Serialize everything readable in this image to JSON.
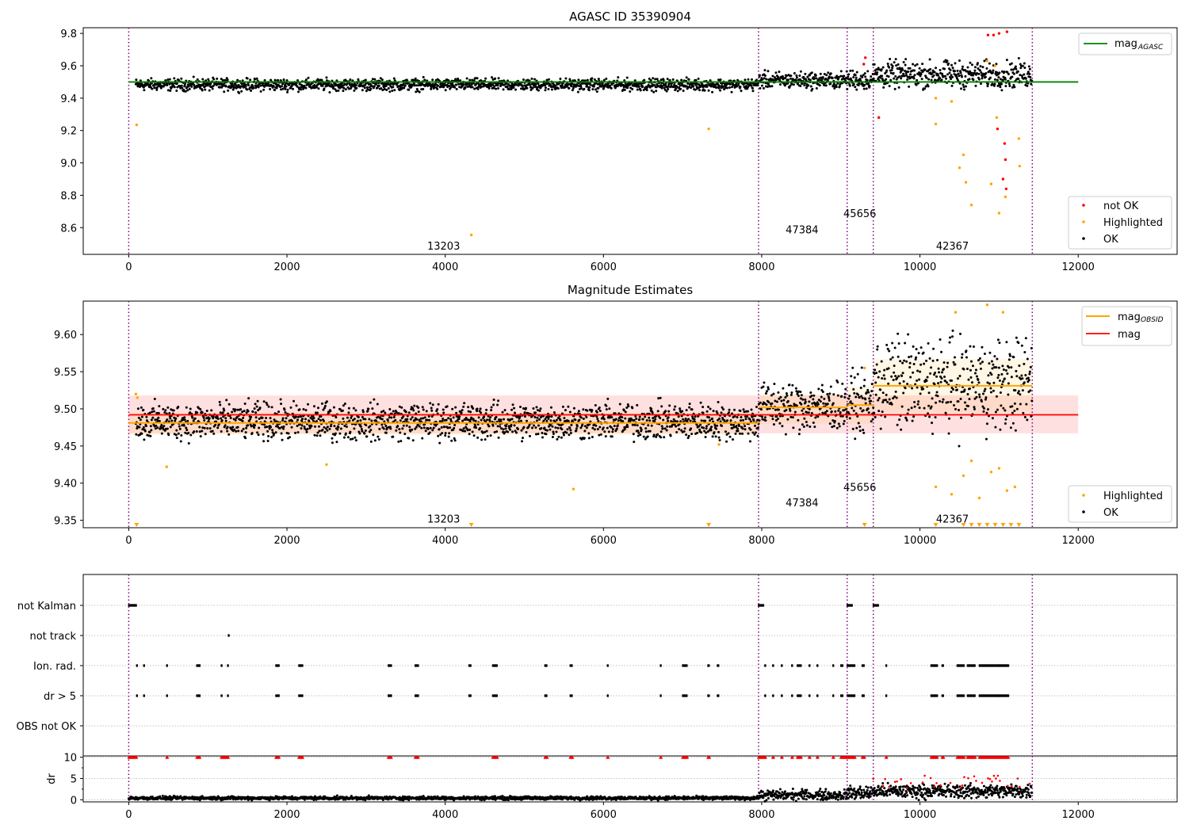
{
  "chart_data": [
    {
      "type": "scatter",
      "title": "AGASC ID 35390904",
      "xlim": [
        -575,
        13250
      ],
      "ylim": [
        8.435,
        9.835
      ],
      "xticks": [
        0,
        2000,
        4000,
        6000,
        8000,
        10000,
        12000
      ],
      "yticks": [
        8.6,
        8.8,
        9.0,
        9.2,
        9.4,
        9.6,
        9.8
      ],
      "obsid_boundaries": [
        0,
        7960,
        9080,
        9410,
        11420
      ],
      "obsid_labels": [
        {
          "text": "13203",
          "x": 3980,
          "y": 8.49
        },
        {
          "text": "47384",
          "x": 8510,
          "y": 8.59
        },
        {
          "text": "45656",
          "x": 9240,
          "y": 8.69
        },
        {
          "text": "42367",
          "x": 10410,
          "y": 8.49
        }
      ],
      "reference_line": {
        "name": "mag_AGASC",
        "value": 9.5,
        "x": [
          0,
          12000
        ],
        "color": "#008000"
      },
      "series": [
        {
          "name": "not OK",
          "color": "#ff0000"
        },
        {
          "name": "Highlighted",
          "color": "#ffa500"
        },
        {
          "name": "OK",
          "color": "#000000"
        }
      ],
      "ok_segments": [
        {
          "x": [
            90,
            7960
          ],
          "center": 9.483,
          "spread": 0.018
        },
        {
          "x": [
            7960,
            9080
          ],
          "center": 9.51,
          "spread": 0.025
        },
        {
          "x": [
            9080,
            9410
          ],
          "center": 9.515,
          "spread": 0.03
        },
        {
          "x": [
            9410,
            11420
          ],
          "center": 9.545,
          "spread": 0.04
        }
      ],
      "highlighted_points": [
        [
          100,
          9.235
        ],
        [
          4330,
          8.555
        ],
        [
          7330,
          9.21
        ],
        [
          10970,
          9.28
        ],
        [
          10550,
          9.05
        ],
        [
          10580,
          8.88
        ],
        [
          10650,
          8.74
        ],
        [
          10900,
          8.87
        ],
        [
          11000,
          8.69
        ],
        [
          11080,
          8.79
        ],
        [
          10200,
          9.24
        ],
        [
          10200,
          9.4
        ],
        [
          10400,
          9.38
        ],
        [
          10500,
          8.97
        ],
        [
          11250,
          9.15
        ],
        [
          11260,
          8.98
        ],
        [
          10850,
          9.63
        ],
        [
          10950,
          9.6
        ]
      ],
      "not_ok_points": [
        [
          9290,
          9.61
        ],
        [
          9310,
          9.65
        ],
        [
          9480,
          9.28
        ],
        [
          10860,
          9.79
        ],
        [
          10930,
          9.79
        ],
        [
          11000,
          9.8
        ],
        [
          11100,
          9.81
        ],
        [
          11050,
          8.9
        ],
        [
          11090,
          8.84
        ],
        [
          10980,
          9.21
        ],
        [
          11070,
          9.12
        ],
        [
          11080,
          9.02
        ]
      ],
      "legends": [
        {
          "position": "top-right",
          "entries": [
            {
              "label": "mag",
              "sub": "AGASC"
            }
          ]
        },
        {
          "position": "bottom-right",
          "entries": [
            {
              "label": "not OK"
            },
            {
              "label": "Highlighted"
            },
            {
              "label": "OK"
            }
          ]
        }
      ]
    },
    {
      "type": "scatter",
      "title": "Magnitude Estimates",
      "xlim": [
        -575,
        13250
      ],
      "ylim": [
        9.34,
        9.645
      ],
      "xticks": [
        0,
        2000,
        4000,
        6000,
        8000,
        10000,
        12000
      ],
      "yticks": [
        9.35,
        9.4,
        9.45,
        9.5,
        9.55,
        9.6
      ],
      "obsid_boundaries": [
        0,
        7960,
        9080,
        9410,
        11420
      ],
      "obsid_labels": [
        {
          "text": "13203",
          "x": 3980,
          "y": 9.352
        },
        {
          "text": "47384",
          "x": 8510,
          "y": 9.374
        },
        {
          "text": "45656",
          "x": 9240,
          "y": 9.395
        },
        {
          "text": "42367",
          "x": 10410,
          "y": 9.352
        }
      ],
      "mag": {
        "name": "mag",
        "value": 9.492,
        "band": [
          9.467,
          9.518
        ],
        "x": [
          0,
          12000
        ],
        "color": "#ff0000"
      },
      "mag_obsid": [
        {
          "x": [
            0,
            7960
          ],
          "value": 9.481,
          "band": [
            9.465,
            9.495
          ]
        },
        {
          "x": [
            7960,
            9080
          ],
          "value": 9.502,
          "band": [
            9.48,
            9.52
          ]
        },
        {
          "x": [
            9080,
            9410
          ],
          "value": 9.505,
          "band": [
            9.48,
            9.53
          ]
        },
        {
          "x": [
            9410,
            11420
          ],
          "value": 9.531,
          "band": [
            9.495,
            9.567
          ]
        }
      ],
      "ok_segments": [
        {
          "x": [
            90,
            7960
          ],
          "center": 9.483,
          "spread": 0.012
        },
        {
          "x": [
            7960,
            9080
          ],
          "center": 9.503,
          "spread": 0.016
        },
        {
          "x": [
            9080,
            9410
          ],
          "center": 9.507,
          "spread": 0.018
        },
        {
          "x": [
            9410,
            11420
          ],
          "center": 9.533,
          "spread": 0.03
        }
      ],
      "highlighted_points": [
        [
          90,
          9.52
        ],
        [
          110,
          9.515
        ],
        [
          480,
          9.422
        ],
        [
          2500,
          9.425
        ],
        [
          5620,
          9.392
        ],
        [
          7460,
          9.452
        ],
        [
          10200,
          9.395
        ],
        [
          10400,
          9.385
        ],
        [
          10550,
          9.41
        ],
        [
          10650,
          9.43
        ],
        [
          10750,
          9.38
        ],
        [
          10900,
          9.415
        ],
        [
          11000,
          9.42
        ],
        [
          11100,
          9.39
        ],
        [
          11200,
          9.395
        ],
        [
          10450,
          9.63
        ],
        [
          10850,
          9.64
        ],
        [
          11050,
          9.63
        ],
        [
          9300,
          9.555
        ]
      ],
      "clipped_markers": [
        100,
        4330,
        7330,
        9300,
        10200,
        10550,
        10650,
        10750,
        10850,
        10950,
        11050,
        11150,
        11250
      ],
      "legends": [
        {
          "position": "top-right",
          "entries": [
            {
              "label": "mag",
              "sub": "OBSID"
            },
            {
              "label": "mag"
            }
          ]
        },
        {
          "position": "bottom-right",
          "entries": [
            {
              "label": "Highlighted"
            },
            {
              "label": "OK"
            }
          ]
        }
      ]
    },
    {
      "type": "scatter",
      "title": "",
      "xlim": [
        -575,
        13250
      ],
      "categories": [
        "not Kalman",
        "not track",
        "Ion. rad.",
        "dr > 5",
        "OBS not OK"
      ],
      "obsid_boundaries": [
        0,
        7960,
        9080,
        9410,
        11420
      ],
      "flag_x": {
        "not Kalman": [
          [
            0,
            100
          ],
          [
            7960,
            8030
          ],
          [
            9080,
            9150
          ],
          [
            9410,
            9480
          ]
        ],
        "not track": [
          [
            1260,
            1270
          ]
        ],
        "Ion. rad.": [
          [
            100,
            110
          ],
          [
            190,
            200
          ],
          [
            480,
            490
          ],
          [
            860,
            900
          ],
          [
            1170,
            1180
          ],
          [
            1250,
            1260
          ],
          [
            1860,
            1900
          ],
          [
            2150,
            2200
          ],
          [
            3280,
            3320
          ],
          [
            3620,
            3660
          ],
          [
            4300,
            4330
          ],
          [
            4600,
            4660
          ],
          [
            5260,
            5290
          ],
          [
            5580,
            5610
          ],
          [
            6050,
            6060
          ],
          [
            6720,
            6730
          ],
          [
            7000,
            7060
          ],
          [
            7320,
            7340
          ],
          [
            7440,
            7460
          ],
          [
            8040,
            8050
          ],
          [
            8140,
            8150
          ],
          [
            8250,
            8260
          ],
          [
            8380,
            8390
          ],
          [
            8450,
            8500
          ],
          [
            8600,
            8610
          ],
          [
            8700,
            8710
          ],
          [
            8900,
            8910
          ],
          [
            9000,
            9030
          ],
          [
            9080,
            9180
          ],
          [
            9270,
            9300
          ],
          [
            9570,
            9580
          ],
          [
            10140,
            10220
          ],
          [
            10280,
            10300
          ],
          [
            10470,
            10560
          ],
          [
            10600,
            10700
          ],
          [
            10750,
            11000
          ],
          [
            11000,
            11120
          ]
        ],
        "dr > 5": [
          [
            100,
            110
          ],
          [
            190,
            200
          ],
          [
            480,
            490
          ],
          [
            860,
            900
          ],
          [
            1170,
            1180
          ],
          [
            1250,
            1260
          ],
          [
            1860,
            1900
          ],
          [
            2150,
            2200
          ],
          [
            3280,
            3320
          ],
          [
            3620,
            3660
          ],
          [
            4300,
            4330
          ],
          [
            4600,
            4660
          ],
          [
            5260,
            5290
          ],
          [
            5580,
            5610
          ],
          [
            6050,
            6060
          ],
          [
            6720,
            6730
          ],
          [
            7000,
            7060
          ],
          [
            7320,
            7340
          ],
          [
            7440,
            7460
          ],
          [
            8040,
            8050
          ],
          [
            8140,
            8150
          ],
          [
            8250,
            8260
          ],
          [
            8380,
            8390
          ],
          [
            8450,
            8500
          ],
          [
            8600,
            8610
          ],
          [
            8700,
            8710
          ],
          [
            8900,
            8910
          ],
          [
            9000,
            9030
          ],
          [
            9080,
            9180
          ],
          [
            9270,
            9300
          ],
          [
            9570,
            9580
          ],
          [
            10140,
            10220
          ],
          [
            10280,
            10300
          ],
          [
            10470,
            10560
          ],
          [
            10600,
            10700
          ],
          [
            10750,
            11000
          ],
          [
            11000,
            11120
          ]
        ],
        "OBS not OK": []
      }
    },
    {
      "type": "scatter",
      "title": "",
      "ylabel": "dr",
      "xlim": [
        -575,
        13250
      ],
      "ylim": [
        -0.5,
        10.3
      ],
      "xticks": [
        0,
        2000,
        4000,
        6000,
        8000,
        10000,
        12000
      ],
      "yticks": [
        0,
        5,
        10
      ],
      "obsid_boundaries": [
        0,
        7960,
        9080,
        9410,
        11420
      ],
      "ok_segments": [
        {
          "x": [
            0,
            7960
          ],
          "center": 0.4,
          "spread": 0.2
        },
        {
          "x": [
            7960,
            9080
          ],
          "center": 1.1,
          "spread": 0.6
        },
        {
          "x": [
            9080,
            9410
          ],
          "center": 1.6,
          "spread": 0.8
        },
        {
          "x": [
            9410,
            11420
          ],
          "center": 2.0,
          "spread": 0.8
        }
      ],
      "red_at_10_x": [
        [
          0,
          100
        ],
        [
          480,
          490
        ],
        [
          860,
          900
        ],
        [
          1170,
          1260
        ],
        [
          1860,
          1900
        ],
        [
          2150,
          2200
        ],
        [
          3280,
          3320
        ],
        [
          3620,
          3660
        ],
        [
          4600,
          4660
        ],
        [
          5260,
          5290
        ],
        [
          5580,
          5610
        ],
        [
          6050,
          6060
        ],
        [
          6720,
          6730
        ],
        [
          7000,
          7060
        ],
        [
          7320,
          7340
        ],
        [
          7960,
          8050
        ],
        [
          8140,
          8150
        ],
        [
          8250,
          8260
        ],
        [
          8380,
          8390
        ],
        [
          8450,
          8500
        ],
        [
          8600,
          8610
        ],
        [
          8700,
          8710
        ],
        [
          8900,
          8910
        ],
        [
          9000,
          9180
        ],
        [
          9270,
          9300
        ],
        [
          9570,
          9580
        ],
        [
          10140,
          10220
        ],
        [
          10280,
          10300
        ],
        [
          10470,
          10560
        ],
        [
          10600,
          10700
        ],
        [
          10750,
          11120
        ]
      ]
    }
  ]
}
